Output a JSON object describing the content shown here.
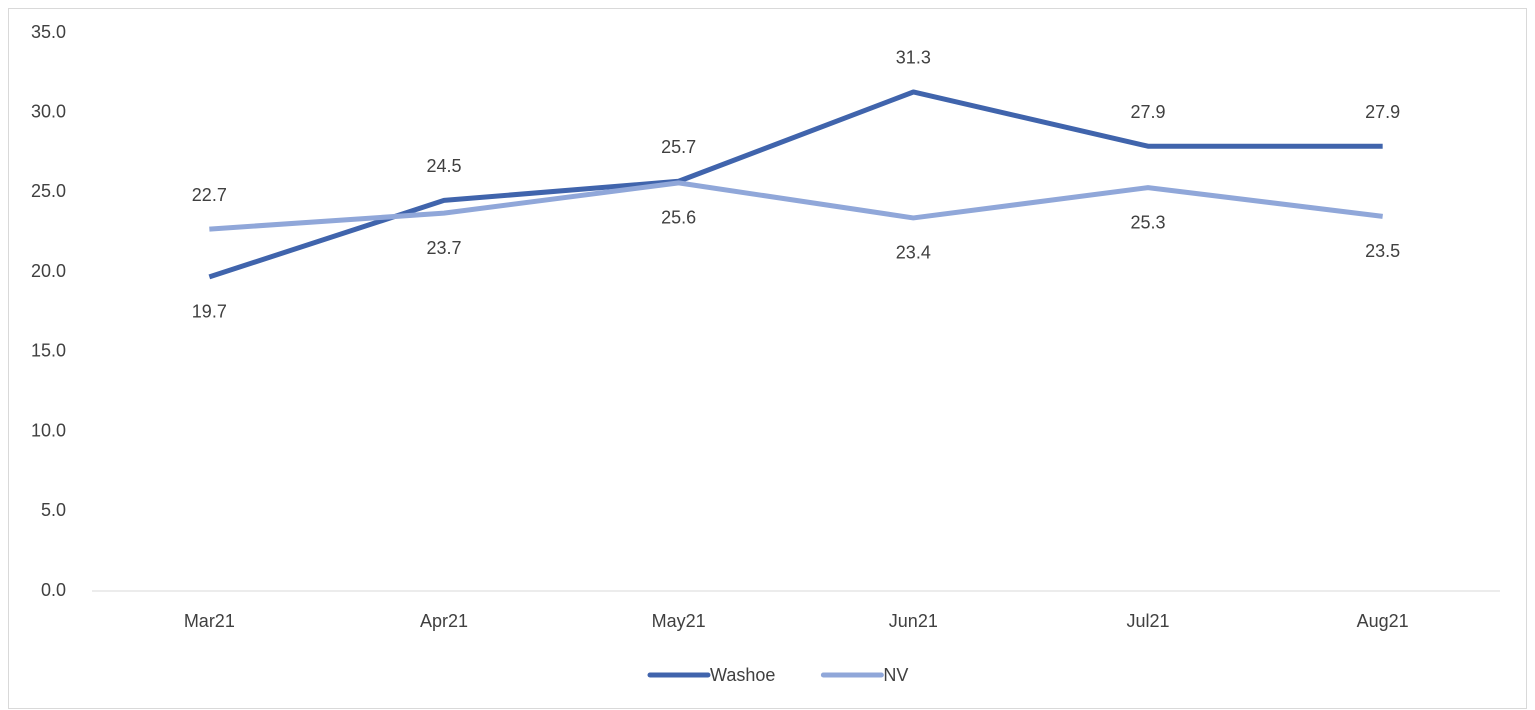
{
  "chart_data": {
    "type": "line",
    "categories": [
      "Mar21",
      "Apr21",
      "May21",
      "Jun21",
      "Jul21",
      "Aug21"
    ],
    "series": [
      {
        "name": "Washoe",
        "color": "#4064ac",
        "values": [
          19.7,
          24.5,
          25.7,
          31.3,
          27.9,
          27.9
        ]
      },
      {
        "name": "NV",
        "color": "#90a7d9",
        "values": [
          22.7,
          23.7,
          25.6,
          23.4,
          25.3,
          23.5
        ]
      }
    ],
    "ylim": [
      0,
      35
    ],
    "yticks": [
      {
        "value": 0,
        "label": "0.0"
      },
      {
        "value": 5,
        "label": "5.0"
      },
      {
        "value": 10,
        "label": "10.0"
      },
      {
        "value": 15,
        "label": "15.0"
      },
      {
        "value": 20,
        "label": "20.0"
      },
      {
        "value": 25,
        "label": "25.0"
      },
      {
        "value": 30,
        "label": "30.0"
      },
      {
        "value": 35,
        "label": "35.0"
      }
    ],
    "grid": false,
    "legend": "bottom"
  }
}
